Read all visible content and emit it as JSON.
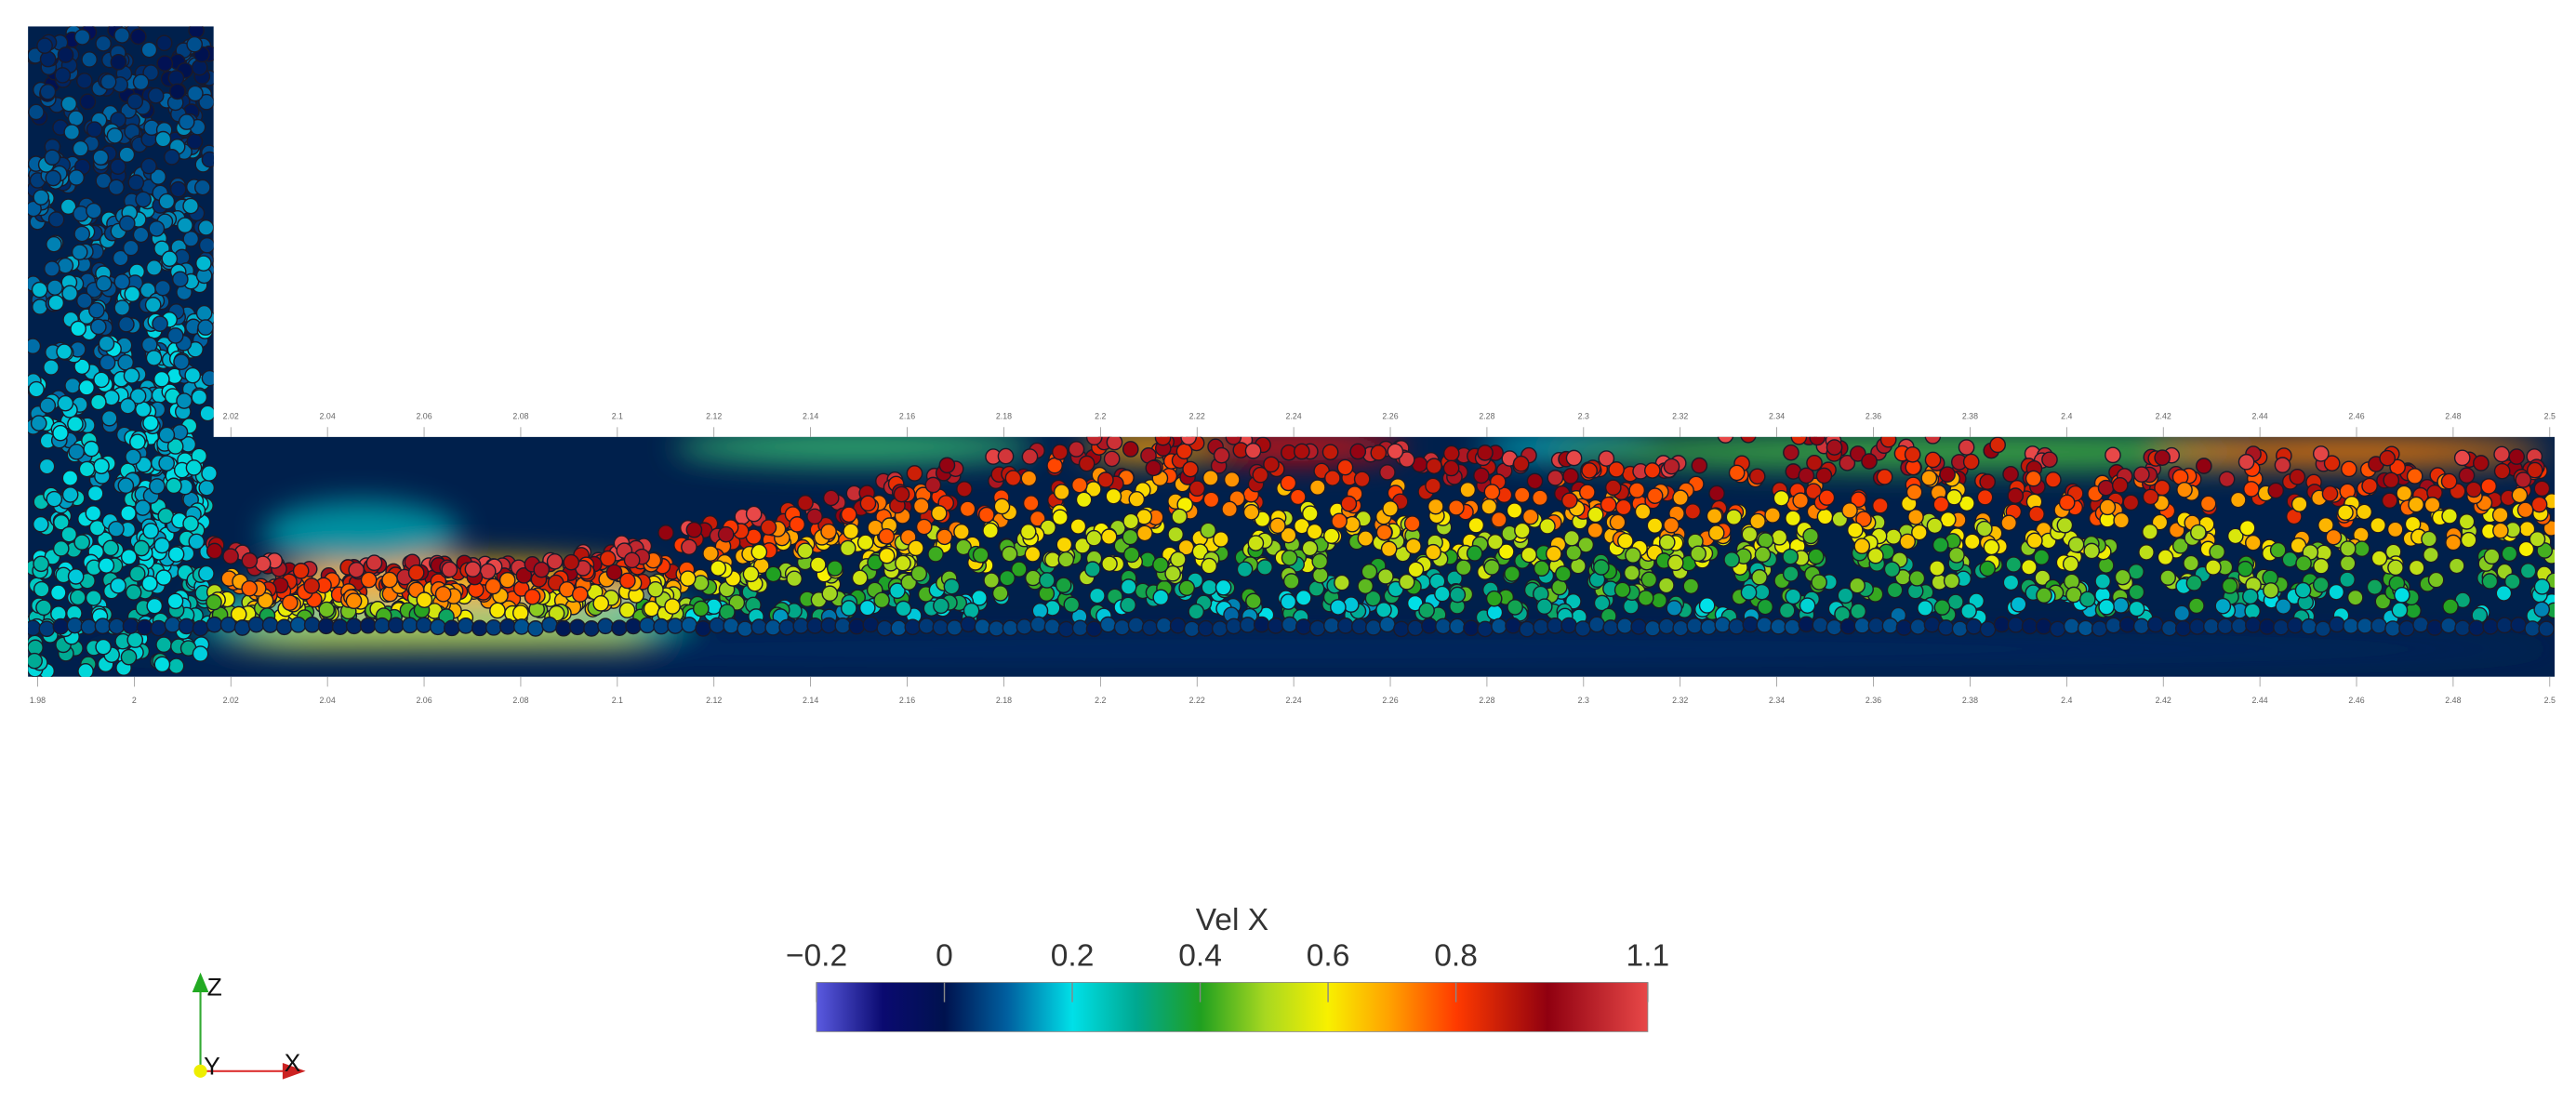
{
  "ruler": {
    "xlim": [
      1.978,
      2.501
    ],
    "top_ticks": [
      2.02,
      2.04,
      2.06,
      2.08,
      2.1,
      2.12,
      2.14,
      2.16,
      2.18,
      2.2,
      2.22,
      2.24,
      2.26,
      2.28,
      2.3,
      2.32,
      2.34,
      2.36,
      2.38,
      2.4,
      2.42,
      2.44,
      2.46,
      2.48,
      2.5
    ],
    "bottom_ticks": [
      1.98,
      2,
      2.02,
      2.04,
      2.06,
      2.08,
      2.1,
      2.12,
      2.14,
      2.16,
      2.18,
      2.2,
      2.22,
      2.24,
      2.26,
      2.28,
      2.3,
      2.32,
      2.34,
      2.36,
      2.38,
      2.4,
      2.42,
      2.44,
      2.46,
      2.48,
      2.5
    ]
  },
  "colorbar": {
    "title": "Vel X",
    "range": [
      -0.2,
      1.1
    ],
    "ticks": [
      {
        "value": -0.2,
        "label": "−0.2"
      },
      0,
      0.2,
      0.4,
      0.6,
      0.8,
      1.1
    ]
  },
  "axes_triad": {
    "labels": [
      "Z",
      "Y",
      "X"
    ]
  }
}
